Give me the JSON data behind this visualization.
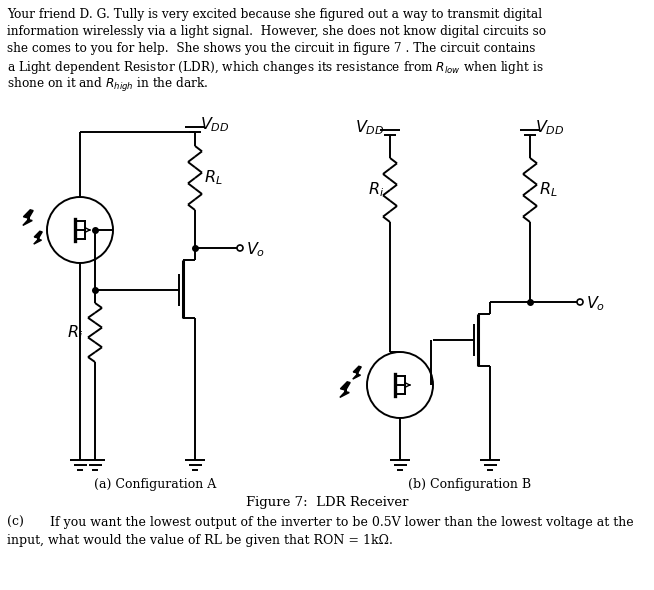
{
  "bg_color": "#ffffff",
  "line_color": "#000000",
  "header_line1": "Your friend D. G. Tully is very excited because she figured out a way to transmit digital",
  "header_line2": "information wirelessly via a light signal.  However, she does not know digital circuits so",
  "header_line3": "she comes to you for help.  She shows you the circuit in figure 7 . The circuit contains",
  "header_line4": "a Light dependent Resistor (LDR), which changes its resistance from $R_{low}$ when light is",
  "header_line5": "shone on it and $R_{high}$ in the dark.",
  "caption_a": "(a) Configuration A",
  "caption_b": "(b) Configuration B",
  "fig_caption": "Figure 7:  LDR Receiver",
  "part_c_label": "(c)",
  "part_c_text": "If you want the lowest output of the inverter to be 0.5V lower than the lowest voltage at the",
  "part_c_text2": "input, what would the value of RL be given that RON = 1kΩ."
}
